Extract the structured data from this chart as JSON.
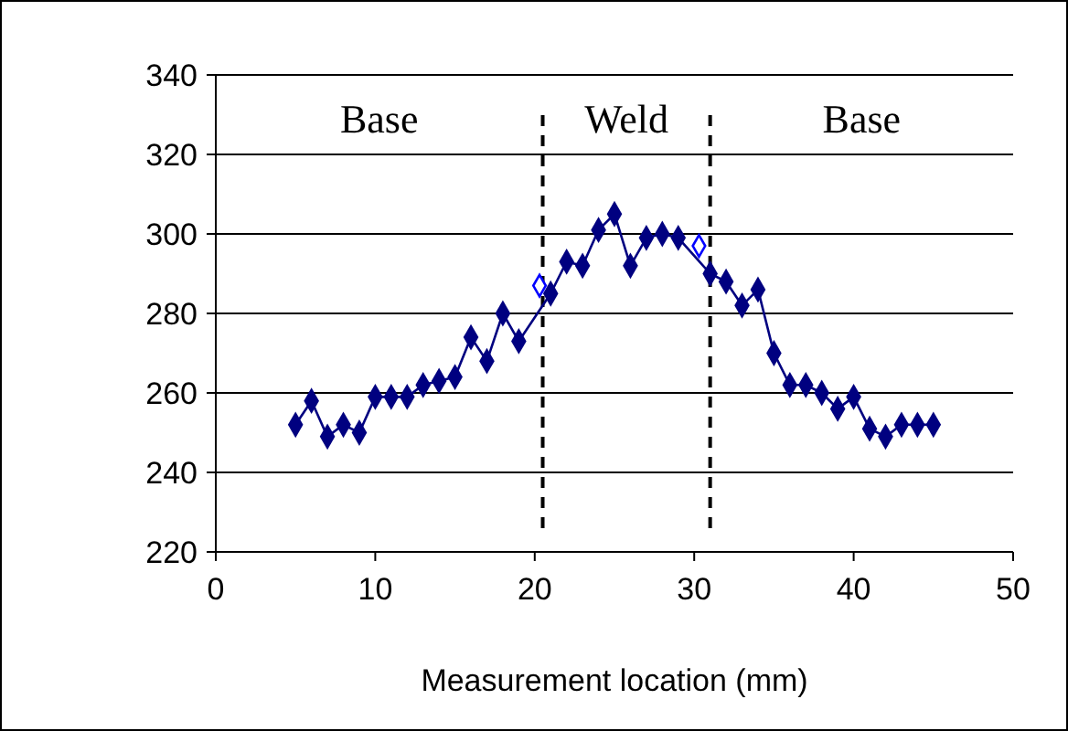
{
  "chart_data": {
    "type": "line",
    "xlabel": "Measurement location (mm)",
    "xlim": [
      0,
      50
    ],
    "xticks": [
      0,
      10,
      20,
      30,
      40,
      50
    ],
    "ylim": [
      220,
      340
    ],
    "yticks": [
      220,
      240,
      260,
      280,
      300,
      320,
      340
    ],
    "grid": "y",
    "marker": "diamond",
    "line_style": "solid",
    "series": [
      {
        "color": "#000080",
        "x": [
          5,
          6,
          7,
          8,
          9,
          10,
          11,
          12,
          13,
          14,
          15,
          16,
          17,
          18,
          19,
          20.3,
          21,
          22,
          23,
          24,
          25,
          26,
          27,
          28,
          29,
          30.3,
          31,
          32,
          33,
          34,
          35,
          36,
          37,
          38,
          39,
          40,
          41,
          42,
          43,
          44,
          45
        ],
        "values": [
          252,
          258,
          249,
          252,
          250,
          259,
          259,
          259,
          262,
          263,
          264,
          274,
          268,
          280,
          273,
          null,
          285,
          293,
          292,
          301,
          305,
          292,
          299,
          300,
          299,
          null,
          290,
          288,
          282,
          286,
          270,
          262,
          262,
          260,
          256,
          259,
          251,
          249,
          252,
          252,
          252
        ]
      },
      {
        "type": "scatter",
        "color": "#0000ff",
        "x": [
          20.3,
          30.3
        ],
        "values": [
          287,
          297
        ]
      }
    ],
    "ref_lines": [
      {
        "axis": "x",
        "value": 20.5,
        "line_style": "dashed",
        "color": "#000000"
      },
      {
        "axis": "x",
        "value": 31,
        "line_style": "dashed",
        "color": "#000000"
      }
    ],
    "annotations": [
      "Base",
      "Weld",
      "Base"
    ]
  }
}
